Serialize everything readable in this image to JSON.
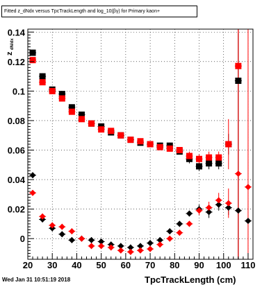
{
  "title": "Fitted  z_dNdx versus TpcTrackLength and log_10(βγ) for Primary kaon+",
  "timestamp": "Wed Jan 31 10:51:19 2018",
  "chart_data": {
    "type": "scatter",
    "title": "Fitted  z_dNdx versus TpcTrackLength and log_10(βγ) for Primary kaon+",
    "xlabel": "TpcTrackLength (cm)",
    "ylabel": "z_dN/dx",
    "xlim": [
      20,
      112
    ],
    "ylim": [
      -0.014,
      0.142
    ],
    "x_ticks": [
      20,
      30,
      40,
      50,
      60,
      70,
      80,
      90,
      100,
      110
    ],
    "y_ticks": [
      0,
      0.02,
      0.04,
      0.06,
      0.08,
      0.1,
      0.12,
      0.14
    ],
    "y_tick_labels": [
      "0",
      "0.02",
      "0.04",
      "0.06",
      "0.08",
      "0.1",
      "0.12",
      "0.14"
    ],
    "grid": true,
    "series": [
      {
        "marker": "square",
        "color": "#000000",
        "points": [
          {
            "x": 22,
            "y": 0.126,
            "err": 0.002
          },
          {
            "x": 26,
            "y": 0.11,
            "err": 0.002
          },
          {
            "x": 30,
            "y": 0.101,
            "err": 0.002
          },
          {
            "x": 34,
            "y": 0.098,
            "err": 0.002
          },
          {
            "x": 38,
            "y": 0.089,
            "err": 0.002
          },
          {
            "x": 42,
            "y": 0.084,
            "err": 0.002
          },
          {
            "x": 46,
            "y": 0.078,
            "err": 0.002
          },
          {
            "x": 50,
            "y": 0.076,
            "err": 0.002
          },
          {
            "x": 54,
            "y": 0.072,
            "err": 0.002
          },
          {
            "x": 58,
            "y": 0.07,
            "err": 0.002
          },
          {
            "x": 62,
            "y": 0.067,
            "err": 0.002
          },
          {
            "x": 66,
            "y": 0.065,
            "err": 0.002
          },
          {
            "x": 70,
            "y": 0.064,
            "err": 0.002
          },
          {
            "x": 74,
            "y": 0.063,
            "err": 0.002
          },
          {
            "x": 78,
            "y": 0.063,
            "err": 0.002
          },
          {
            "x": 82,
            "y": 0.059,
            "err": 0.002
          },
          {
            "x": 86,
            "y": 0.054,
            "err": 0.003
          },
          {
            "x": 90,
            "y": 0.049,
            "err": 0.003
          },
          {
            "x": 94,
            "y": 0.051,
            "err": 0.004
          },
          {
            "x": 98,
            "y": 0.051,
            "err": 0.004
          },
          {
            "x": 102,
            "y": 0.064,
            "err": 0.007
          },
          {
            "x": 106,
            "y": 0.107,
            "err": 0.14
          }
        ]
      },
      {
        "marker": "square",
        "color": "#ff0000",
        "points": [
          {
            "x": 22,
            "y": 0.121,
            "err": 0.002
          },
          {
            "x": 26,
            "y": 0.106,
            "err": 0.002
          },
          {
            "x": 30,
            "y": 0.1,
            "err": 0.002
          },
          {
            "x": 34,
            "y": 0.095,
            "err": 0.002
          },
          {
            "x": 38,
            "y": 0.086,
            "err": 0.002
          },
          {
            "x": 42,
            "y": 0.081,
            "err": 0.002
          },
          {
            "x": 46,
            "y": 0.078,
            "err": 0.002
          },
          {
            "x": 50,
            "y": 0.074,
            "err": 0.002
          },
          {
            "x": 54,
            "y": 0.073,
            "err": 0.002
          },
          {
            "x": 58,
            "y": 0.07,
            "err": 0.002
          },
          {
            "x": 62,
            "y": 0.067,
            "err": 0.002
          },
          {
            "x": 66,
            "y": 0.066,
            "err": 0.002
          },
          {
            "x": 70,
            "y": 0.064,
            "err": 0.002
          },
          {
            "x": 74,
            "y": 0.062,
            "err": 0.002
          },
          {
            "x": 78,
            "y": 0.061,
            "err": 0.002
          },
          {
            "x": 82,
            "y": 0.06,
            "err": 0.002
          },
          {
            "x": 86,
            "y": 0.056,
            "err": 0.003
          },
          {
            "x": 90,
            "y": 0.054,
            "err": 0.003
          },
          {
            "x": 94,
            "y": 0.055,
            "err": 0.004
          },
          {
            "x": 98,
            "y": 0.055,
            "err": 0.004
          },
          {
            "x": 102,
            "y": 0.064,
            "err": 0.017
          },
          {
            "x": 106,
            "y": 0.117,
            "err": 0.14
          }
        ]
      },
      {
        "marker": "diamond",
        "color": "#000000",
        "points": [
          {
            "x": 22,
            "y": 0.043,
            "err": 0.002
          },
          {
            "x": 26,
            "y": 0.013,
            "err": 0.002
          },
          {
            "x": 30,
            "y": 0.007,
            "err": 0.002
          },
          {
            "x": 34,
            "y": 0.003,
            "err": 0.002
          },
          {
            "x": 38,
            "y": -0.001,
            "err": 0.002
          },
          {
            "x": 42,
            "y": 0.0,
            "err": 0.002
          },
          {
            "x": 46,
            "y": -0.001,
            "err": 0.002
          },
          {
            "x": 50,
            "y": -0.002,
            "err": 0.002
          },
          {
            "x": 54,
            "y": -0.004,
            "err": 0.002
          },
          {
            "x": 58,
            "y": -0.005,
            "err": 0.002
          },
          {
            "x": 62,
            "y": -0.006,
            "err": 0.002
          },
          {
            "x": 66,
            "y": -0.005,
            "err": 0.002
          },
          {
            "x": 70,
            "y": -0.003,
            "err": 0.002
          },
          {
            "x": 74,
            "y": -0.001,
            "err": 0.002
          },
          {
            "x": 78,
            "y": 0.005,
            "err": 0.002
          },
          {
            "x": 82,
            "y": 0.01,
            "err": 0.002
          },
          {
            "x": 86,
            "y": 0.017,
            "err": 0.002
          },
          {
            "x": 90,
            "y": 0.02,
            "err": 0.003
          },
          {
            "x": 94,
            "y": 0.018,
            "err": 0.004
          },
          {
            "x": 98,
            "y": 0.023,
            "err": 0.004
          },
          {
            "x": 102,
            "y": 0.021,
            "err": 0.005
          },
          {
            "x": 106,
            "y": 0.019,
            "err": 0.12
          },
          {
            "x": 110,
            "y": 0.012,
            "err": 0.002
          }
        ]
      },
      {
        "marker": "diamond",
        "color": "#ff0000",
        "points": [
          {
            "x": 22,
            "y": 0.031,
            "err": 0.002
          },
          {
            "x": 26,
            "y": 0.015,
            "err": 0.002
          },
          {
            "x": 30,
            "y": 0.009,
            "err": 0.002
          },
          {
            "x": 34,
            "y": 0.008,
            "err": 0.002
          },
          {
            "x": 38,
            "y": 0.005,
            "err": 0.002
          },
          {
            "x": 42,
            "y": 0.0,
            "err": 0.002
          },
          {
            "x": 46,
            "y": -0.005,
            "err": 0.002
          },
          {
            "x": 50,
            "y": -0.005,
            "err": 0.002
          },
          {
            "x": 54,
            "y": -0.006,
            "err": 0.002
          },
          {
            "x": 58,
            "y": -0.008,
            "err": 0.002
          },
          {
            "x": 62,
            "y": -0.009,
            "err": 0.002
          },
          {
            "x": 66,
            "y": -0.008,
            "err": 0.002
          },
          {
            "x": 70,
            "y": -0.007,
            "err": 0.002
          },
          {
            "x": 74,
            "y": -0.004,
            "err": 0.002
          },
          {
            "x": 78,
            "y": 0.0,
            "err": 0.002
          },
          {
            "x": 82,
            "y": 0.004,
            "err": 0.002
          },
          {
            "x": 86,
            "y": 0.01,
            "err": 0.002
          },
          {
            "x": 90,
            "y": 0.019,
            "err": 0.003
          },
          {
            "x": 94,
            "y": 0.021,
            "err": 0.004
          },
          {
            "x": 98,
            "y": 0.026,
            "err": 0.005
          },
          {
            "x": 102,
            "y": 0.024,
            "err": 0.01
          },
          {
            "x": 106,
            "y": 0.044,
            "err": 0.14
          },
          {
            "x": 110,
            "y": 0.035,
            "err": 0.14
          }
        ]
      }
    ]
  }
}
